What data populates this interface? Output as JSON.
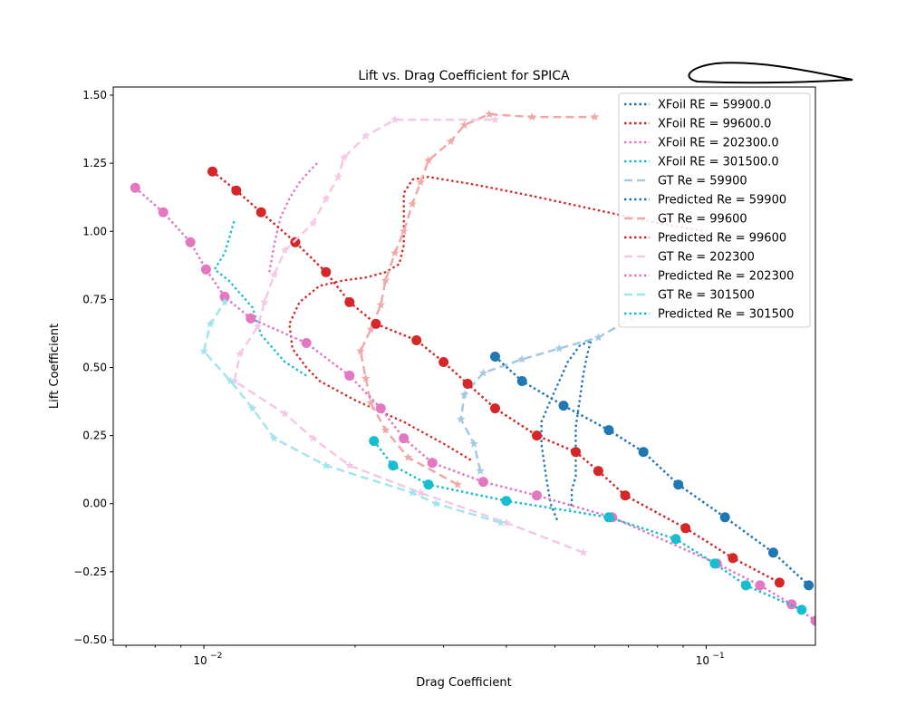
{
  "chart_data": {
    "type": "line",
    "title": "Lift vs. Drag Coefficient for SPICA",
    "xlabel": "Drag Coefficient",
    "ylabel": "Lift Coefficient",
    "xscale": "log",
    "xlim": [
      0.0066,
      0.165
    ],
    "ylim": [
      -0.52,
      1.53
    ],
    "xticks": [
      {
        "value": 0.01,
        "base": "10",
        "exp": "−2"
      },
      {
        "value": 0.1,
        "base": "10",
        "exp": "−1"
      }
    ],
    "yticks": [
      {
        "value": -0.5,
        "label": "−0.50"
      },
      {
        "value": -0.25,
        "label": "−0.25"
      },
      {
        "value": 0.0,
        "label": "0.00"
      },
      {
        "value": 0.25,
        "label": "0.25"
      },
      {
        "value": 0.5,
        "label": "0.50"
      },
      {
        "value": 0.75,
        "label": "0.75"
      },
      {
        "value": 1.0,
        "label": "1.00"
      },
      {
        "value": 1.25,
        "label": "1.25"
      },
      {
        "value": 1.5,
        "label": "1.50"
      }
    ],
    "legend_position": "top-right",
    "series": [
      {
        "name": "XFoil RE = 59900.0",
        "style": "xfoil",
        "color": "#1f77b4",
        "points": [
          [
            0.0505,
            -0.06
          ],
          [
            0.049,
            0.0
          ],
          [
            0.048,
            0.1
          ],
          [
            0.047,
            0.22
          ],
          [
            0.047,
            0.3
          ],
          [
            0.049,
            0.38
          ],
          [
            0.051,
            0.45
          ],
          [
            0.053,
            0.52
          ],
          [
            0.056,
            0.58
          ],
          [
            0.059,
            0.6
          ],
          [
            0.058,
            0.55
          ],
          [
            0.057,
            0.48
          ],
          [
            0.056,
            0.38
          ],
          [
            0.055,
            0.28
          ],
          [
            0.055,
            0.18
          ],
          [
            0.055,
            0.1
          ],
          [
            0.054,
            0.05
          ],
          [
            0.054,
            0.0
          ],
          [
            0.0535,
            -0.02
          ]
        ]
      },
      {
        "name": "XFoil RE = 99600.0",
        "style": "xfoil",
        "color": "#d62728",
        "points": [
          [
            0.034,
            0.16
          ],
          [
            0.03,
            0.22
          ],
          [
            0.025,
            0.3
          ],
          [
            0.02,
            0.38
          ],
          [
            0.017,
            0.45
          ],
          [
            0.016,
            0.5
          ],
          [
            0.015,
            0.57
          ],
          [
            0.0148,
            0.66
          ],
          [
            0.0155,
            0.74
          ],
          [
            0.017,
            0.8
          ],
          [
            0.019,
            0.82
          ],
          [
            0.021,
            0.83
          ],
          [
            0.023,
            0.85
          ],
          [
            0.0245,
            0.88
          ],
          [
            0.025,
            0.95
          ],
          [
            0.025,
            1.05
          ],
          [
            0.025,
            1.14
          ],
          [
            0.026,
            1.19
          ],
          [
            0.028,
            1.2
          ],
          [
            0.035,
            1.17
          ],
          [
            0.045,
            1.13
          ],
          [
            0.06,
            1.08
          ],
          [
            0.08,
            1.03
          ],
          [
            0.1,
            1.0
          ]
        ]
      },
      {
        "name": "XFoil RE = 202300.0",
        "style": "xfoil",
        "color": "#e377c2",
        "points": [
          [
            0.0135,
            0.85
          ],
          [
            0.0138,
            0.95
          ],
          [
            0.0142,
            1.05
          ],
          [
            0.0148,
            1.12
          ],
          [
            0.0155,
            1.18
          ],
          [
            0.0162,
            1.22
          ],
          [
            0.0168,
            1.25
          ]
        ]
      },
      {
        "name": "XFoil RE = 301500.0",
        "style": "xfoil",
        "color": "#17becf",
        "points": [
          [
            0.016,
            0.47
          ],
          [
            0.0145,
            0.52
          ],
          [
            0.013,
            0.62
          ],
          [
            0.0125,
            0.72
          ],
          [
            0.0112,
            0.82
          ],
          [
            0.0105,
            0.86
          ],
          [
            0.011,
            0.92
          ],
          [
            0.0115,
            1.04
          ]
        ]
      },
      {
        "name": "GT Re = 59900",
        "style": "gt",
        "color": "#1f77b4",
        "points": [
          [
            0.0355,
            0.12
          ],
          [
            0.0345,
            0.22
          ],
          [
            0.0325,
            0.31
          ],
          [
            0.033,
            0.4
          ],
          [
            0.036,
            0.48
          ],
          [
            0.043,
            0.53
          ],
          [
            0.051,
            0.57
          ],
          [
            0.061,
            0.61
          ],
          [
            0.071,
            0.68
          ]
        ]
      },
      {
        "name": "Predicted Re = 59900",
        "style": "pred",
        "color": "#1f77b4",
        "points": [
          [
            0.038,
            0.54
          ],
          [
            0.043,
            0.45
          ],
          [
            0.052,
            0.36
          ],
          [
            0.064,
            0.27
          ],
          [
            0.075,
            0.19
          ],
          [
            0.088,
            0.07
          ],
          [
            0.109,
            -0.05
          ],
          [
            0.136,
            -0.18
          ],
          [
            0.16,
            -0.3
          ]
        ]
      },
      {
        "name": "GT Re = 99600",
        "style": "gt",
        "color": "#d62728",
        "points": [
          [
            0.032,
            0.07
          ],
          [
            0.0255,
            0.17
          ],
          [
            0.023,
            0.27
          ],
          [
            0.0215,
            0.37
          ],
          [
            0.021,
            0.46
          ],
          [
            0.0205,
            0.56
          ],
          [
            0.0215,
            0.64
          ],
          [
            0.0225,
            0.73
          ],
          [
            0.023,
            0.82
          ],
          [
            0.024,
            0.92
          ],
          [
            0.025,
            1.0
          ],
          [
            0.026,
            1.1
          ],
          [
            0.027,
            1.18
          ],
          [
            0.028,
            1.26
          ],
          [
            0.031,
            1.33
          ],
          [
            0.033,
            1.39
          ],
          [
            0.037,
            1.43
          ],
          [
            0.045,
            1.42
          ],
          [
            0.06,
            1.42
          ]
        ]
      },
      {
        "name": "Predicted Re = 99600",
        "style": "pred",
        "color": "#d62728",
        "points": [
          [
            0.0104,
            1.22
          ],
          [
            0.0116,
            1.15
          ],
          [
            0.013,
            1.07
          ],
          [
            0.0152,
            0.96
          ],
          [
            0.0175,
            0.85
          ],
          [
            0.0195,
            0.74
          ],
          [
            0.022,
            0.66
          ],
          [
            0.0265,
            0.6
          ],
          [
            0.03,
            0.52
          ],
          [
            0.0335,
            0.44
          ],
          [
            0.038,
            0.35
          ],
          [
            0.046,
            0.25
          ],
          [
            0.055,
            0.19
          ],
          [
            0.061,
            0.12
          ],
          [
            0.069,
            0.03
          ],
          [
            0.091,
            -0.09
          ],
          [
            0.113,
            -0.2
          ],
          [
            0.14,
            -0.29
          ]
        ]
      },
      {
        "name": "GT Re = 202300",
        "style": "gt",
        "color": "#e377c2",
        "points": [
          [
            0.057,
            -0.18
          ],
          [
            0.04,
            -0.07
          ],
          [
            0.027,
            0.04
          ],
          [
            0.0195,
            0.14
          ],
          [
            0.0165,
            0.24
          ],
          [
            0.0145,
            0.33
          ],
          [
            0.0115,
            0.45
          ],
          [
            0.0118,
            0.55
          ],
          [
            0.0128,
            0.65
          ],
          [
            0.0132,
            0.74
          ],
          [
            0.0138,
            0.84
          ],
          [
            0.0145,
            0.93
          ],
          [
            0.0165,
            1.03
          ],
          [
            0.0175,
            1.12
          ],
          [
            0.0185,
            1.2
          ],
          [
            0.019,
            1.27
          ],
          [
            0.021,
            1.35
          ],
          [
            0.024,
            1.41
          ],
          [
            0.038,
            1.41
          ]
        ]
      },
      {
        "name": "Predicted Re = 202300",
        "style": "pred",
        "color": "#e377c2",
        "points": [
          [
            0.0073,
            1.16
          ],
          [
            0.0083,
            1.07
          ],
          [
            0.0094,
            0.96
          ],
          [
            0.0101,
            0.86
          ],
          [
            0.011,
            0.76
          ],
          [
            0.0124,
            0.68
          ],
          [
            0.016,
            0.59
          ],
          [
            0.0195,
            0.47
          ],
          [
            0.0225,
            0.35
          ],
          [
            0.025,
            0.24
          ],
          [
            0.0285,
            0.15
          ],
          [
            0.036,
            0.08
          ],
          [
            0.046,
            0.03
          ],
          [
            0.065,
            -0.05
          ],
          [
            0.105,
            -0.22
          ],
          [
            0.128,
            -0.3
          ],
          [
            0.148,
            -0.37
          ],
          [
            0.165,
            -0.43
          ]
        ]
      },
      {
        "name": "GT Re = 301500",
        "style": "gt",
        "color": "#17becf",
        "points": [
          [
            0.039,
            -0.07
          ],
          [
            0.029,
            0.0
          ],
          [
            0.026,
            0.04
          ],
          [
            0.0175,
            0.14
          ],
          [
            0.0138,
            0.24
          ],
          [
            0.0125,
            0.35
          ],
          [
            0.0113,
            0.45
          ],
          [
            0.01,
            0.56
          ],
          [
            0.0103,
            0.66
          ],
          [
            0.011,
            0.74
          ]
        ]
      },
      {
        "name": "Predicted Re = 301500",
        "style": "pred",
        "color": "#17becf",
        "points": [
          [
            0.0218,
            0.23
          ],
          [
            0.0238,
            0.14
          ],
          [
            0.028,
            0.07
          ],
          [
            0.04,
            0.01
          ],
          [
            0.064,
            -0.05
          ],
          [
            0.087,
            -0.13
          ],
          [
            0.104,
            -0.22
          ],
          [
            0.12,
            -0.3
          ],
          [
            0.155,
            -0.39
          ]
        ]
      }
    ]
  }
}
